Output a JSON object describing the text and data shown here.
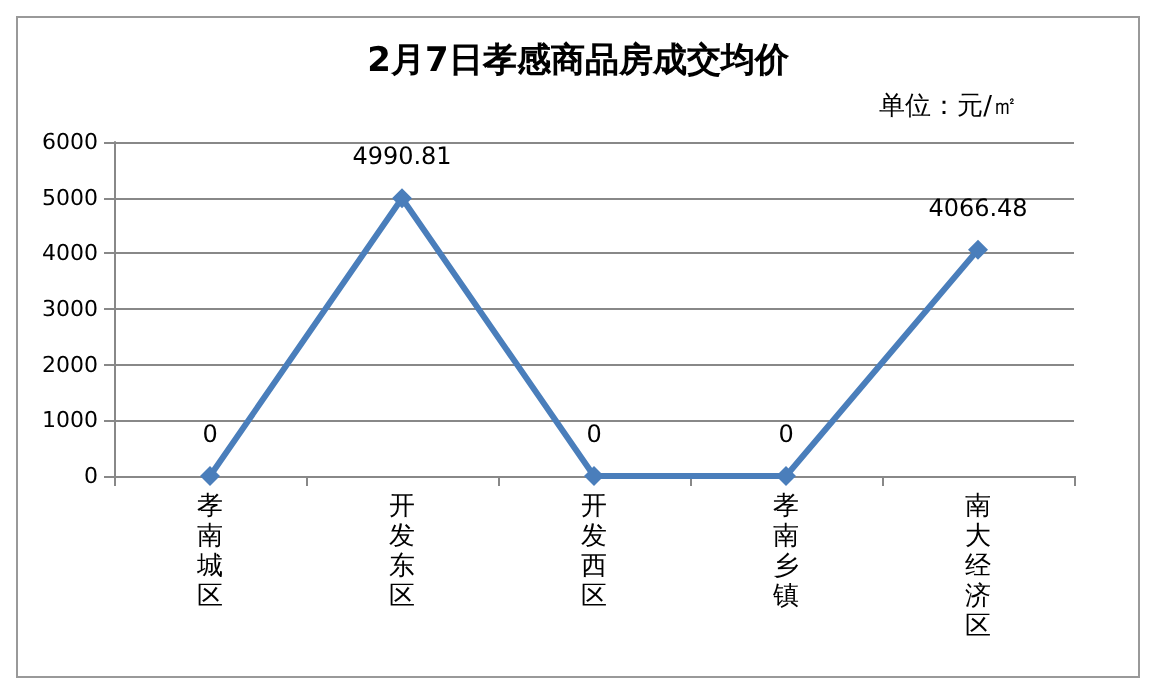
{
  "chart_data": {
    "type": "line",
    "title": "2月7日孝感商品房成交均价",
    "annotations": [
      "单位：元/㎡"
    ],
    "categories": [
      "孝南城区",
      "开发东区",
      "开发西区",
      "孝南乡镇",
      "南大经济区"
    ],
    "series": [
      {
        "color": "#4a7ebb",
        "values": [
          0,
          4990.81,
          0,
          0,
          4066.48
        ]
      }
    ],
    "ylim": [
      0,
      6000
    ],
    "yticks": [
      0,
      1000,
      2000,
      3000,
      4000,
      5000,
      6000
    ],
    "grid": "y",
    "marker": "diamond",
    "line_style": "solid",
    "data_labels": true
  }
}
